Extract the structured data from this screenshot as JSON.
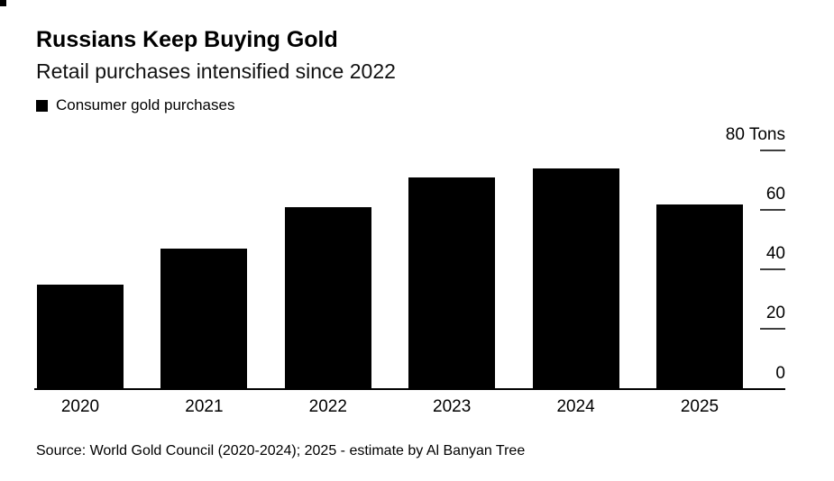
{
  "header": {
    "title": "Russians Keep Buying Gold",
    "subtitle": "Retail purchases intensified since 2022",
    "legend": {
      "swatch_color": "#000000",
      "label": "Consumer gold purchases"
    }
  },
  "chart_data": {
    "type": "bar",
    "title": "Russians Keep Buying Gold",
    "subtitle": "Retail purchases intensified since 2022",
    "series_name": "Consumer gold purchases",
    "categories": [
      "2020",
      "2021",
      "2022",
      "2023",
      "2024",
      "2025"
    ],
    "values": [
      35,
      47,
      61,
      71,
      74,
      62
    ],
    "unit": "Tons",
    "ylim": [
      0,
      80
    ],
    "yticks": [
      0,
      20,
      40,
      60,
      80
    ],
    "ytick_labels": [
      "0",
      "20",
      "40",
      "60",
      "80 Tons"
    ],
    "axis_side": "right",
    "grid": false,
    "legend_position": "top-left",
    "bar_color": "#000000",
    "tick_color": "#3f3f3f",
    "background_color": "#ffffff"
  },
  "footer": {
    "source": "Source: World Gold Council (2020-2024); 2025 - estimate by Al Banyan Tree"
  }
}
